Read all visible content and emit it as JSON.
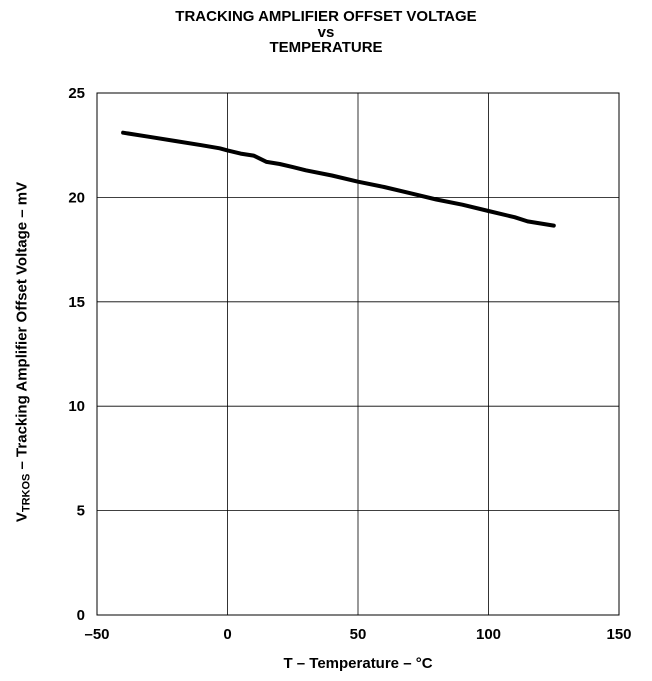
{
  "title": {
    "line1": "TRACKING AMPLIFIER OFFSET VOLTAGE",
    "line2": "vs",
    "line3": "TEMPERATURE"
  },
  "axes": {
    "xlabel": "T – Temperature – °C",
    "ylabel_prefix": "V",
    "ylabel_sub": "TRKOS",
    "ylabel_rest": " – Tracking Amplifier Offset Voltage – mV"
  },
  "chart_data": {
    "type": "line",
    "title": "TRACKING AMPLIFIER OFFSET VOLTAGE vs TEMPERATURE",
    "xlabel": "T – Temperature – °C",
    "ylabel": "VTRKOS – Tracking Amplifier Offset Voltage – mV",
    "xlim": [
      -50,
      150
    ],
    "ylim": [
      0,
      25
    ],
    "x_ticks": [
      "–50",
      "0",
      "50",
      "100",
      "150"
    ],
    "y_ticks": [
      "0",
      "5",
      "10",
      "15",
      "20",
      "25"
    ],
    "x_tick_values": [
      -50,
      0,
      50,
      100,
      150
    ],
    "y_tick_values": [
      0,
      5,
      10,
      15,
      20,
      25
    ],
    "grid": true,
    "series": [
      {
        "x": [
          -40,
          -30,
          -20,
          -10,
          -3,
          0,
          5,
          10,
          15,
          20,
          25,
          30,
          40,
          50,
          60,
          70,
          80,
          90,
          100,
          110,
          115,
          120,
          125
        ],
        "y": [
          23.1,
          22.9,
          22.7,
          22.5,
          22.35,
          22.25,
          22.1,
          22.0,
          21.7,
          21.6,
          21.45,
          21.3,
          21.05,
          20.75,
          20.5,
          20.2,
          19.9,
          19.65,
          19.35,
          19.05,
          18.85,
          18.75,
          18.65
        ]
      }
    ],
    "line_color": "#000000"
  }
}
